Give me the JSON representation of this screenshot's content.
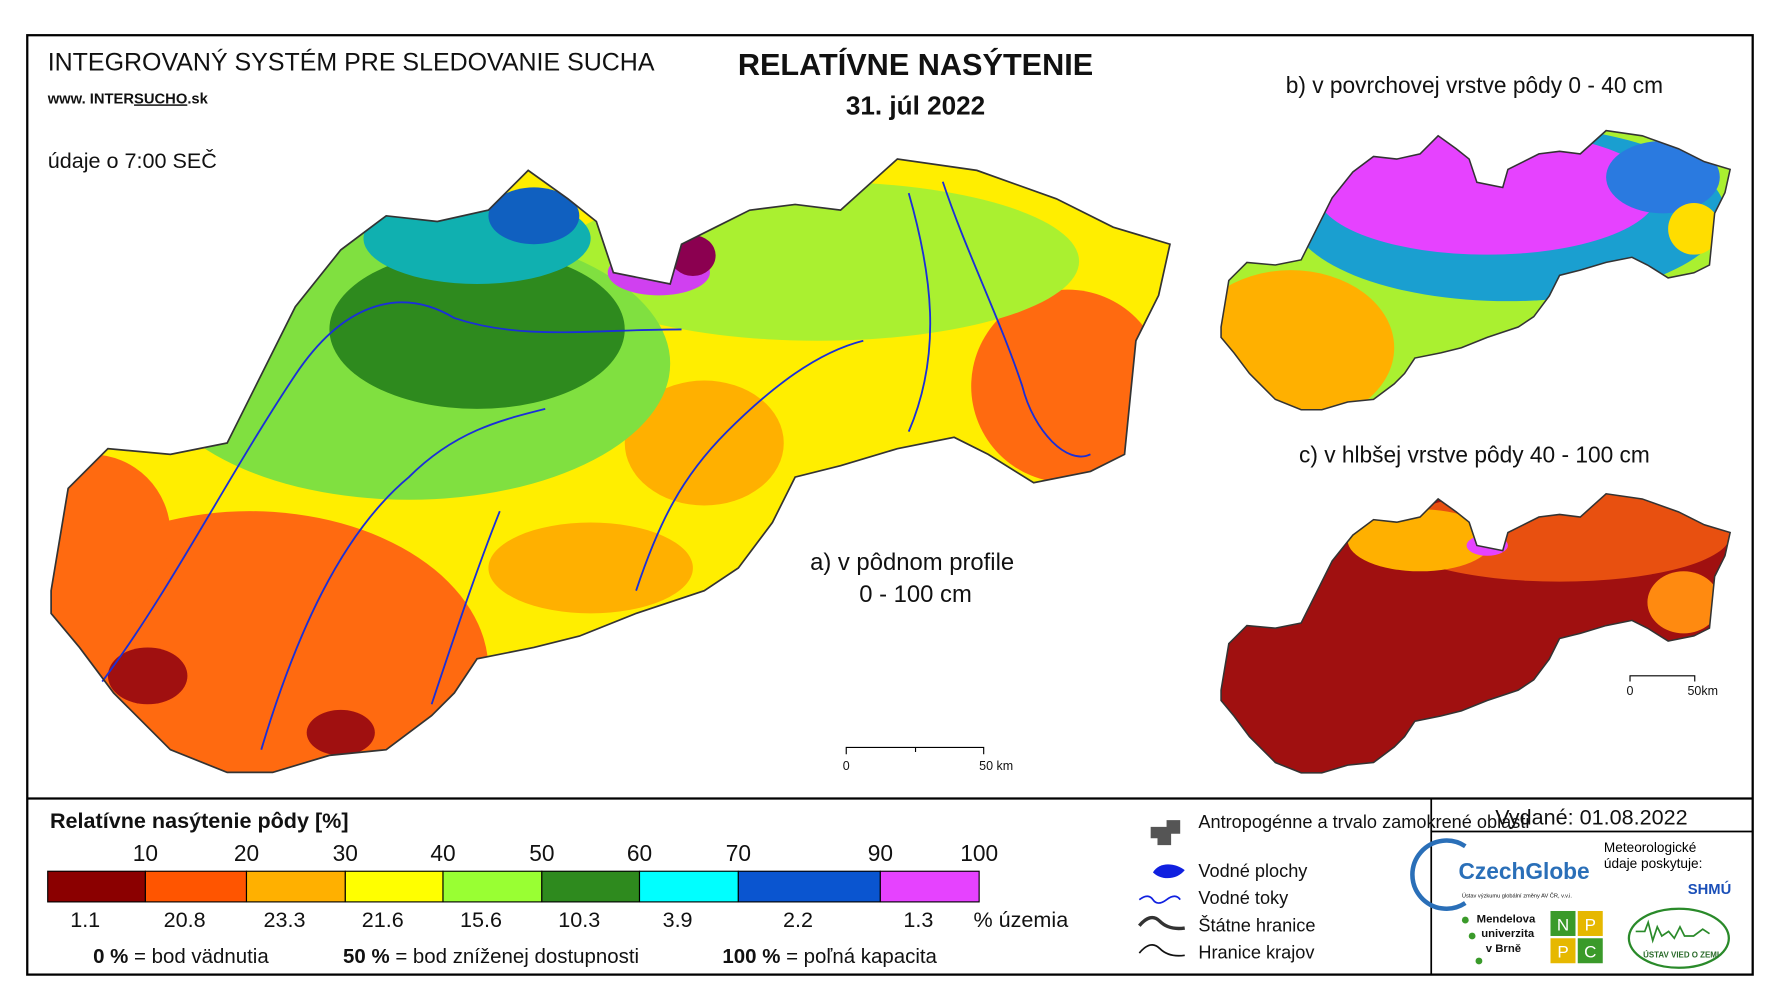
{
  "header": {
    "system": "INTEGROVANÝ SYSTÉM PRE SLEDOVANIE SUCHA",
    "web_prefix": "www. INTER",
    "web_mid": "SUCHO",
    "web_suffix": ".sk",
    "time": "údaje o 7:00 SEČ",
    "title": "RELATÍVNE NASÝTENIE",
    "date": "31. júl 2022"
  },
  "maps": {
    "a_label": "a) v pôdnom profile",
    "a_depth": "0 - 100 cm",
    "b_label": "b) v povrchovej vrstve pôdy 0 - 40 cm",
    "c_label": "c) v hlbšej vrstve pôdy 40 - 100 cm",
    "scale_zero": "0",
    "scale_a": "50 km",
    "scale_c": "50km"
  },
  "legend": {
    "title": "Relatívne nasýtenie pôdy [%]",
    "thresholds": [
      10,
      20,
      30,
      40,
      50,
      60,
      70,
      90,
      100
    ],
    "colors": [
      "#8b0000",
      "#ff5500",
      "#ffb000",
      "#ffff00",
      "#99ff33",
      "#2e8a1e",
      "#00ffff",
      "#0a55d0",
      "#e642ff"
    ],
    "shares": [
      "1.1",
      "20.8",
      "23.3",
      "21.6",
      "15.6",
      "10.3",
      "3.9",
      "2.2",
      "1.3"
    ],
    "share_unit": "% územia",
    "notes": [
      {
        "key": "0 %",
        "text": "= bod vädnutia"
      },
      {
        "key": "50 %",
        "text": "= bod zníženej dostupnosti"
      },
      {
        "key": "100 %",
        "text": "= poľná kapacita"
      }
    ]
  },
  "symbols": [
    "Antropogénne a trvalo zamokrené oblasti",
    "Vodné plochy",
    "Vodné toky",
    "Štátne hranice",
    "Hranice krajov"
  ],
  "footer": {
    "issued": "Vydané: 01.08.2022",
    "czechglobe": "CzechGlobe",
    "czechglobe_sub": "Ústav výzkumu globální změny AV ČR, v.v.i.",
    "meteo": "Meteorologické údaje poskytuje:",
    "shmu": "SHMÚ",
    "mendel": [
      "Mendelova",
      "univerzita",
      "v Brně"
    ],
    "nppc": [
      "N",
      "P",
      "P",
      "C"
    ],
    "uvz": "ÚSTAV VIED O ZEMI"
  }
}
